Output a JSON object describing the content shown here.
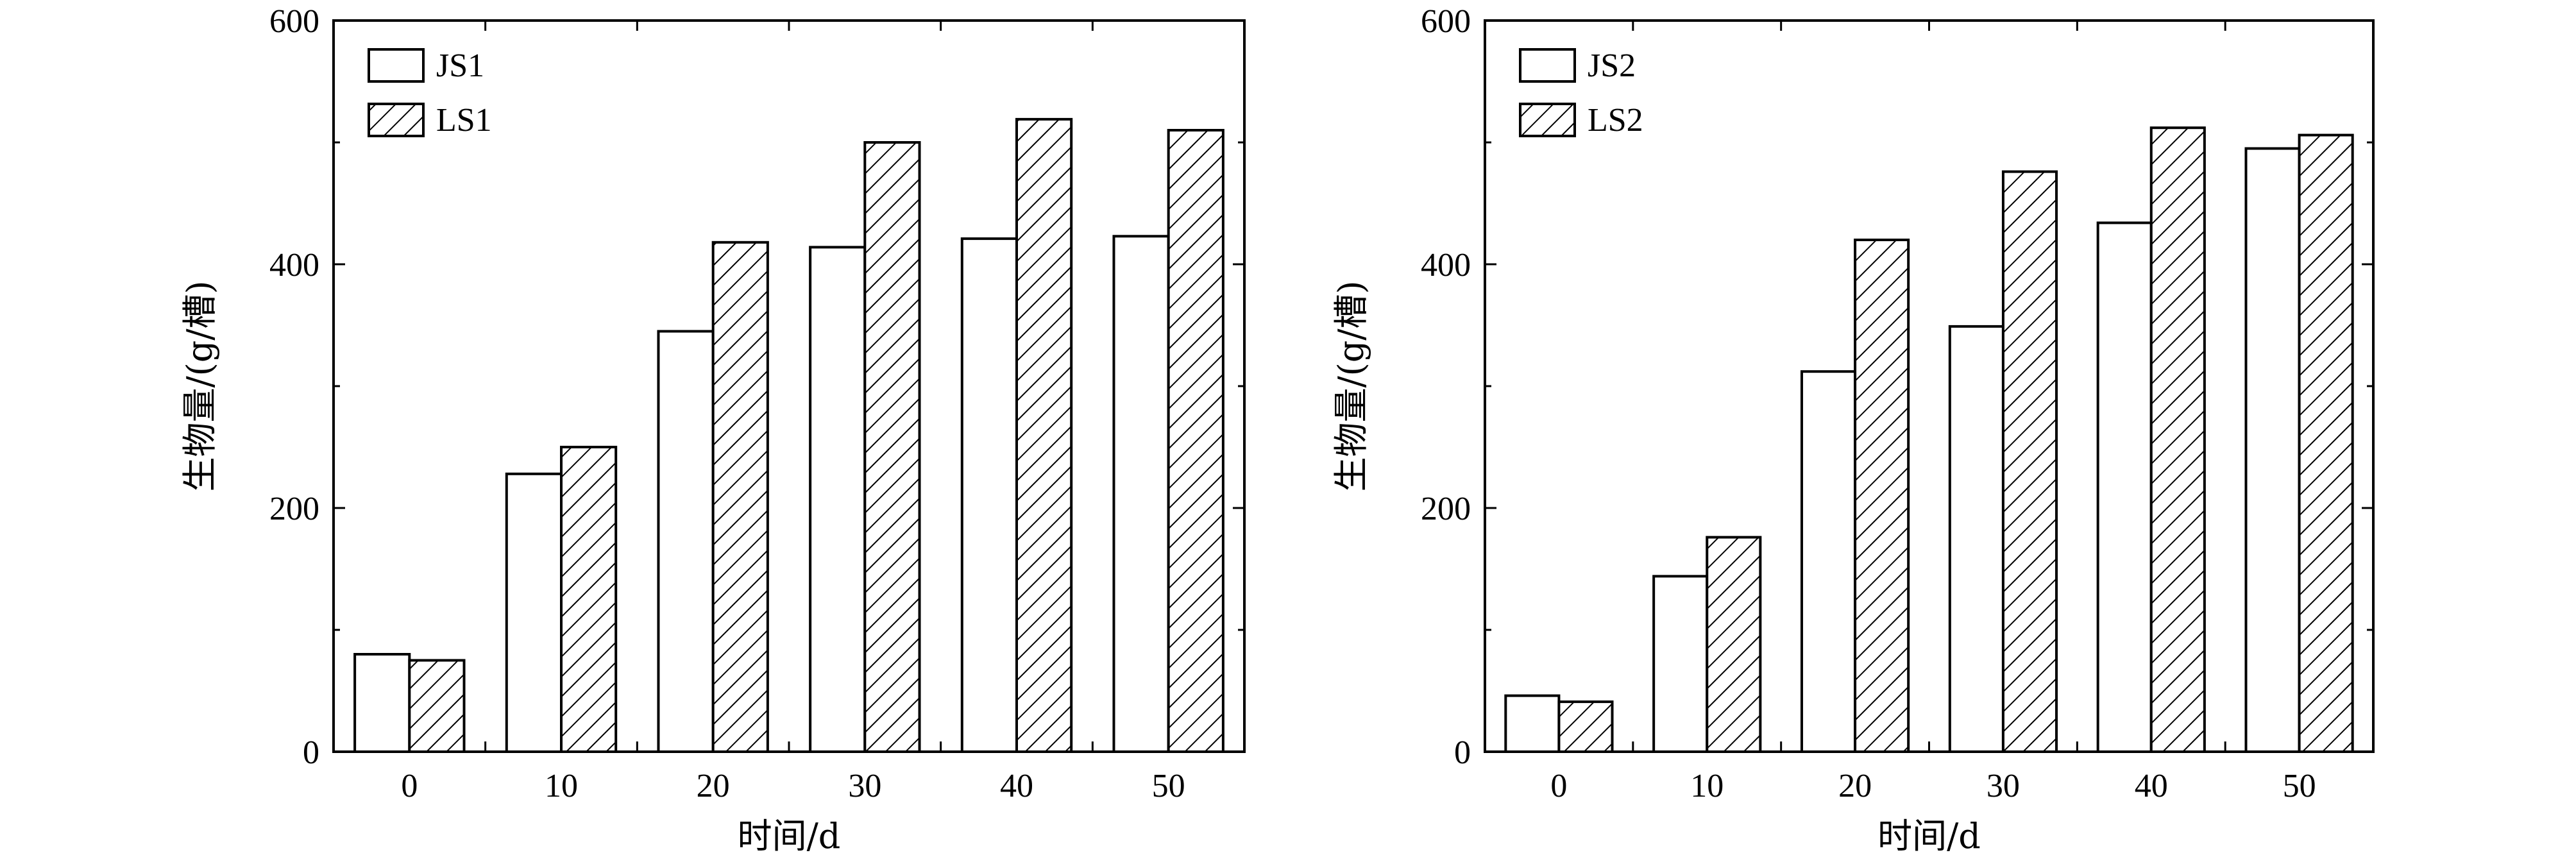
{
  "chart_data": [
    {
      "type": "bar",
      "xlabel": "时间/d",
      "ylabel": "生物量/(g/槽)",
      "categories": [
        "0",
        "10",
        "20",
        "30",
        "40",
        "50"
      ],
      "ylim": [
        0,
        600
      ],
      "yticks": [
        0,
        200,
        400,
        600
      ],
      "legend_position": "top-left",
      "series": [
        {
          "name": "JS1",
          "style": "plain",
          "values": [
            80,
            228,
            345,
            414,
            421,
            423
          ]
        },
        {
          "name": "LS1",
          "style": "hatched",
          "values": [
            75,
            250,
            418,
            500,
            519,
            510
          ]
        }
      ]
    },
    {
      "type": "bar",
      "xlabel": "时间/d",
      "ylabel": "生物量/(g/槽)",
      "categories": [
        "0",
        "10",
        "20",
        "30",
        "40",
        "50"
      ],
      "ylim": [
        0,
        600
      ],
      "yticks": [
        0,
        200,
        400,
        600
      ],
      "legend_position": "top-left",
      "series": [
        {
          "name": "JS2",
          "style": "plain",
          "values": [
            46,
            144,
            312,
            349,
            434,
            495
          ]
        },
        {
          "name": "LS2",
          "style": "hatched",
          "values": [
            41,
            176,
            420,
            476,
            512,
            506
          ]
        }
      ]
    }
  ],
  "colors": {
    "plain_fill": "#ffffff",
    "hatch_line": "#000000",
    "axis": "#000000"
  }
}
